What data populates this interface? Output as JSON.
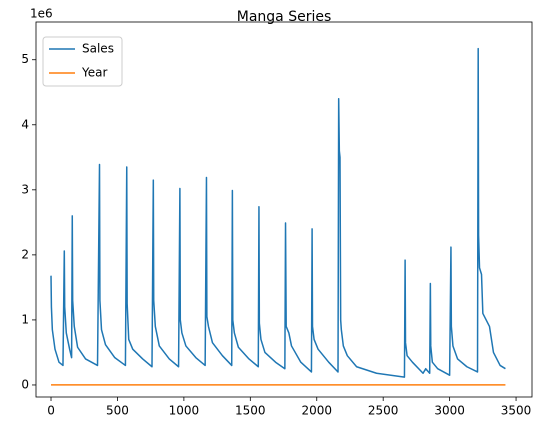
{
  "chart_data": {
    "type": "line",
    "title": "Manga Series",
    "y_offset_label": "1e6",
    "xlim": [
      -113,
      3620
    ],
    "xticks": [
      0,
      500,
      1000,
      1500,
      2000,
      2500,
      3000,
      3500
    ],
    "ylim": [
      -0.185,
      5.58
    ],
    "yticks": [
      0,
      1,
      2,
      3,
      4,
      5
    ],
    "legend": "upper left",
    "grid": false,
    "series": [
      {
        "name": "Sales",
        "color": "#1f77b4",
        "x": [
          0,
          3,
          10,
          30,
          60,
          90,
          100,
          103,
          115,
          140,
          155,
          160,
          163,
          175,
          200,
          260,
          350,
          365,
          368,
          380,
          410,
          480,
          560,
          570,
          573,
          585,
          615,
          690,
          760,
          770,
          773,
          785,
          815,
          890,
          960,
          970,
          973,
          985,
          1015,
          1090,
          1160,
          1170,
          1173,
          1185,
          1215,
          1290,
          1360,
          1365,
          1368,
          1380,
          1410,
          1490,
          1560,
          1565,
          1568,
          1580,
          1610,
          1690,
          1760,
          1765,
          1770,
          1790,
          1810,
          1880,
          1960,
          1965,
          1968,
          1980,
          2010,
          2090,
          2160,
          2165,
          2170,
          2175,
          2180,
          2185,
          2200,
          2230,
          2300,
          2450,
          2660,
          2665,
          2668,
          2680,
          2720,
          2800,
          2820,
          2850,
          2855,
          2858,
          2870,
          2910,
          3000,
          3010,
          3013,
          3025,
          3060,
          3130,
          3210,
          3215,
          3218,
          3225,
          3240,
          3250,
          3300,
          3330,
          3380,
          3420
        ],
        "values": [
          1.68,
          1.2,
          0.85,
          0.55,
          0.35,
          0.3,
          2.06,
          1.2,
          0.8,
          0.55,
          0.42,
          2.6,
          1.3,
          0.9,
          0.58,
          0.4,
          0.3,
          3.39,
          1.3,
          0.85,
          0.62,
          0.42,
          0.3,
          3.35,
          1.25,
          0.7,
          0.55,
          0.4,
          0.28,
          3.15,
          1.3,
          0.9,
          0.6,
          0.4,
          0.28,
          3.02,
          1.0,
          0.8,
          0.6,
          0.42,
          0.3,
          3.19,
          1.05,
          0.9,
          0.65,
          0.45,
          0.3,
          2.99,
          1.0,
          0.8,
          0.58,
          0.4,
          0.28,
          2.74,
          0.95,
          0.7,
          0.5,
          0.35,
          0.25,
          2.49,
          0.9,
          0.8,
          0.6,
          0.35,
          0.2,
          2.4,
          0.9,
          0.7,
          0.55,
          0.35,
          0.2,
          4.4,
          3.6,
          3.5,
          1.0,
          0.85,
          0.6,
          0.45,
          0.28,
          0.18,
          0.12,
          1.92,
          0.65,
          0.45,
          0.35,
          0.18,
          0.25,
          0.18,
          1.56,
          0.6,
          0.35,
          0.25,
          0.15,
          2.12,
          0.9,
          0.6,
          0.4,
          0.28,
          0.2,
          5.17,
          2.3,
          1.8,
          1.7,
          1.1,
          0.9,
          0.5,
          0.3,
          0.25
        ]
      },
      {
        "name": "Year",
        "color": "#ff7f0e",
        "x": [
          0,
          3420
        ],
        "values": [
          0.002,
          0.002
        ]
      }
    ]
  }
}
